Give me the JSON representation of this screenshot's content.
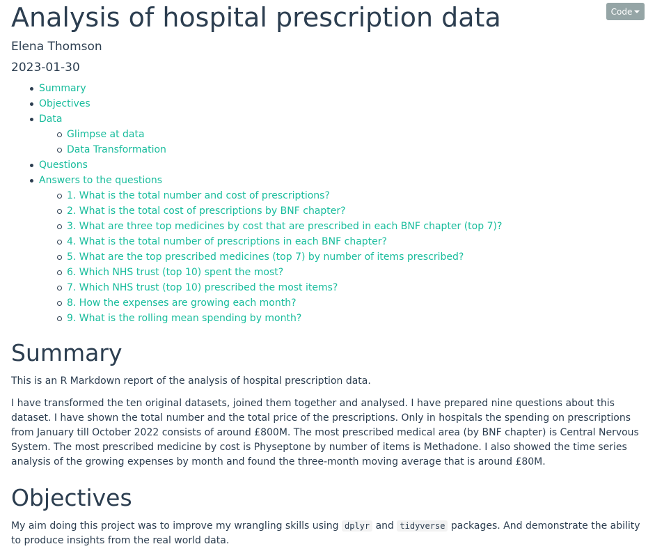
{
  "toolbar": {
    "code_label": "Code"
  },
  "header": {
    "title": "Analysis of hospital prescription data",
    "author": "Elena Thomson",
    "date": "2023-01-30"
  },
  "toc": {
    "summary": "Summary",
    "objectives": "Objectives",
    "data": "Data",
    "glimpse": "Glimpse at data",
    "transformation": "Data Transformation",
    "questions": "Questions",
    "answers": "Answers to the questions",
    "q1": "1. What is the total number and cost of prescriptions?",
    "q2": "2. What is the total cost of prescriptions by BNF chapter?",
    "q3": "3. What are three top medicines by cost that are prescribed in each BNF chapter (top 7)?",
    "q4": "4. What is the total number of prescriptions in each BNF chapter?",
    "q5": "5. What are the top prescribed medicines (top 7) by number of items prescribed?",
    "q6": "6. Which NHS trust (top 10) spent the most?",
    "q7": "7. Which NHS trust (top 10) prescribed the most items?",
    "q8": "8. How the expenses are growing each month?",
    "q9": "9. What is the rolling mean spending by month?"
  },
  "summary": {
    "heading": "Summary",
    "intro": "This is an R Markdown report of the analysis of hospital prescription data.",
    "body": "I have transformed the ten original datasets, joined them together and analysed. I have prepared nine questions about this dataset. I have shown the total number and the total price of the prescriptions. Only in hospitals the spending on prescriptions from January till October 2022 consists of around £800M. The most prescribed medical area (by BNF chapter) is Central Nervous System. The most prescribed medicine by cost is Physeptone by number of items is Methadone. I also showed the time series analysis of the growing expenses by month and found the three-month moving average that is around £80M."
  },
  "objectives": {
    "heading": "Objectives",
    "text_before": "My aim doing this project was to improve my wrangling skills using ",
    "code1": "dplyr",
    "text_mid": " and ",
    "code2": "tidyverse",
    "text_after": " packages. And demonstrate the ability to produce insights from the real world data."
  }
}
